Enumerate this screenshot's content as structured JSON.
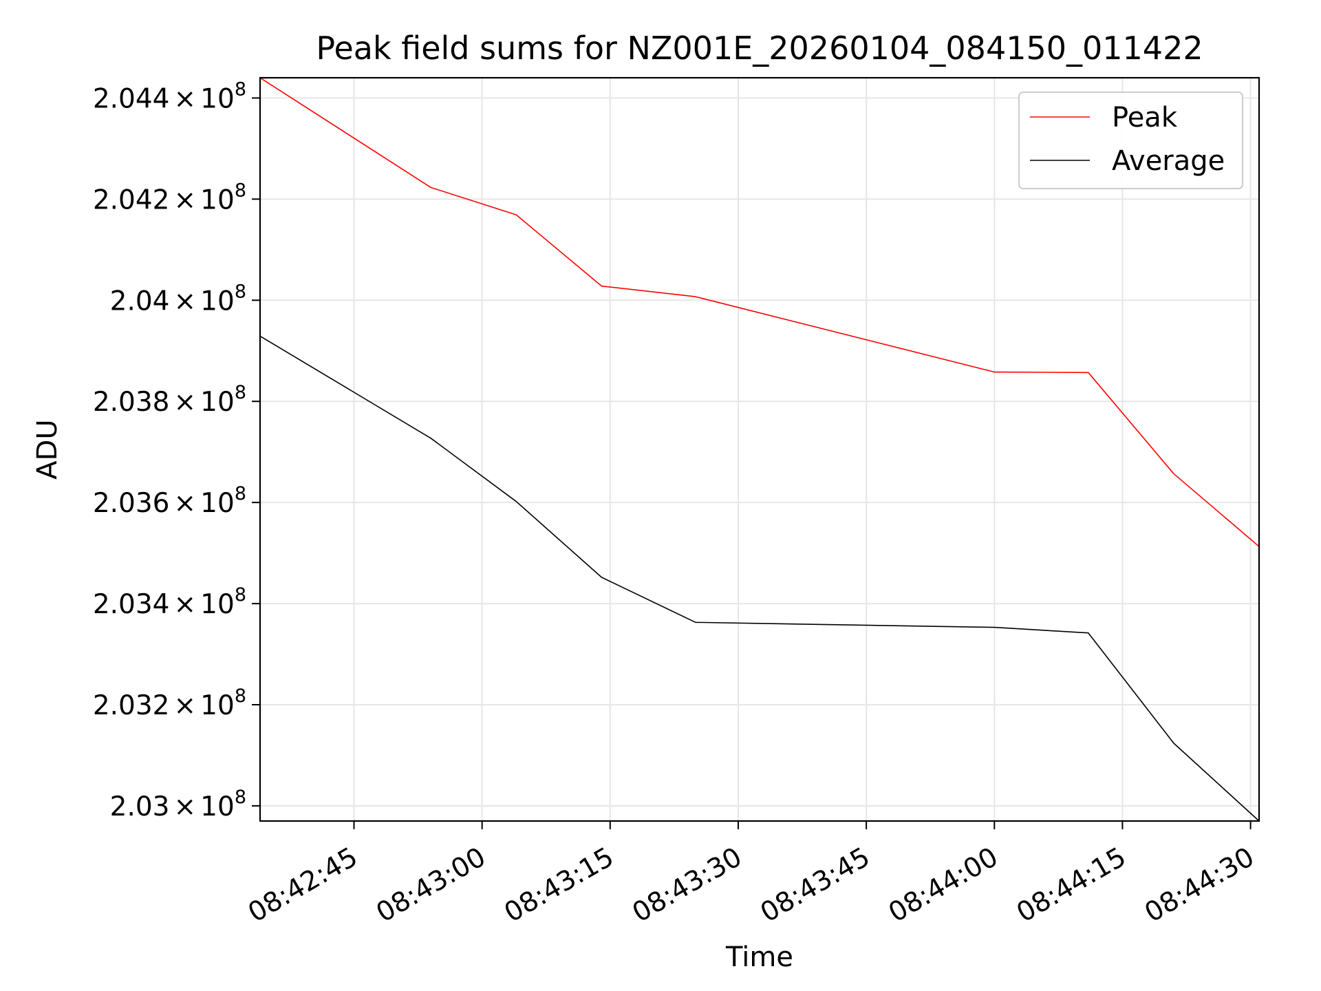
{
  "chart_data": {
    "type": "line",
    "title": "Peak field sums for NZ001E_20260104_084150_011422",
    "xlabel": "Time",
    "ylabel": "ADU",
    "x_type": "time",
    "xlim": [
      "08:42:34",
      "08:44:31"
    ],
    "ylim": [
      202970000,
      204440000
    ],
    "grid": true,
    "legend_position": "top-right",
    "x_ticks": [
      "08:42:45",
      "08:43:00",
      "08:43:15",
      "08:43:30",
      "08:43:45",
      "08:44:00",
      "08:44:15",
      "08:44:30"
    ],
    "y_ticks": [
      {
        "value": 203000000,
        "mantissa": "2.03"
      },
      {
        "value": 203200000,
        "mantissa": "2.032"
      },
      {
        "value": 203400000,
        "mantissa": "2.034"
      },
      {
        "value": 203600000,
        "mantissa": "2.036"
      },
      {
        "value": 203800000,
        "mantissa": "2.038"
      },
      {
        "value": 204000000,
        "mantissa": "2.04"
      },
      {
        "value": 204200000,
        "mantissa": "2.042"
      },
      {
        "value": 204400000,
        "mantissa": "2.044"
      }
    ],
    "y_tick_times": "×",
    "y_tick_base": "10",
    "y_tick_exp": "8",
    "x": [
      "08:42:34",
      "08:42:54",
      "08:43:04",
      "08:43:14",
      "08:43:25",
      "08:44:00",
      "08:44:11",
      "08:44:21",
      "08:44:31"
    ],
    "series": [
      {
        "name": "Peak",
        "color": "#ff0000",
        "values": [
          204440000,
          204223000,
          204169000,
          204028000,
          204007000,
          203858000,
          203857000,
          203657000,
          203513000
        ]
      },
      {
        "name": "Average",
        "color": "#000000",
        "values": [
          203929000,
          203727000,
          203602000,
          203452000,
          203363000,
          203353000,
          203342000,
          203124000,
          202970000
        ]
      }
    ]
  }
}
